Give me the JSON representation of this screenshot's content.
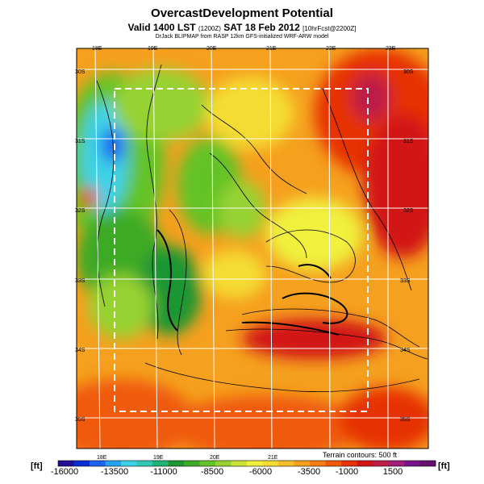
{
  "header": {
    "title": "OvercastDevelopment Potential",
    "valid_prefix": "Valid 1400 LST",
    "valid_code": "(1200Z)",
    "valid_main": "SAT 18 Feb 2012",
    "valid_fcst": "[10hrFcst@2200Z]",
    "credit": "DrJack BLIPMAP from RASP 12km GFS-initialized WRF-ARW model"
  },
  "map": {
    "lon_labels_top": [
      "18E",
      "19E",
      "20E",
      "21E",
      "22E",
      "23E"
    ],
    "lon_labels_bottom": [
      "18E",
      "19E",
      "20E",
      "21E"
    ],
    "lat_labels_left": [
      "30S",
      "31S",
      "32S",
      "33S",
      "34S",
      "35S"
    ],
    "lat_labels_right": [
      "30S",
      "31S",
      "32S",
      "33S",
      "34S",
      "35S"
    ],
    "terrain_note": "Terrain contours: 500 ft"
  },
  "colorbar": {
    "unit_left": "[ft]",
    "unit_right": "[ft]",
    "tick_labels": [
      "-16000",
      "-13500",
      "-11000",
      "-8500",
      "-6000",
      "-3500",
      "-1000",
      "1500"
    ],
    "colors": [
      "#1e0f96",
      "#0a2dd2",
      "#1e64f0",
      "#28a0f0",
      "#3cd2e6",
      "#32c8b4",
      "#1eb478",
      "#1e9632",
      "#3caa28",
      "#64c328",
      "#96d232",
      "#c8e132",
      "#f0f03c",
      "#f5dc32",
      "#f5be28",
      "#f5a01e",
      "#f57d14",
      "#f05a0a",
      "#e63205",
      "#d21414",
      "#be1e46",
      "#a01e78",
      "#78148c",
      "#64106e"
    ]
  }
}
